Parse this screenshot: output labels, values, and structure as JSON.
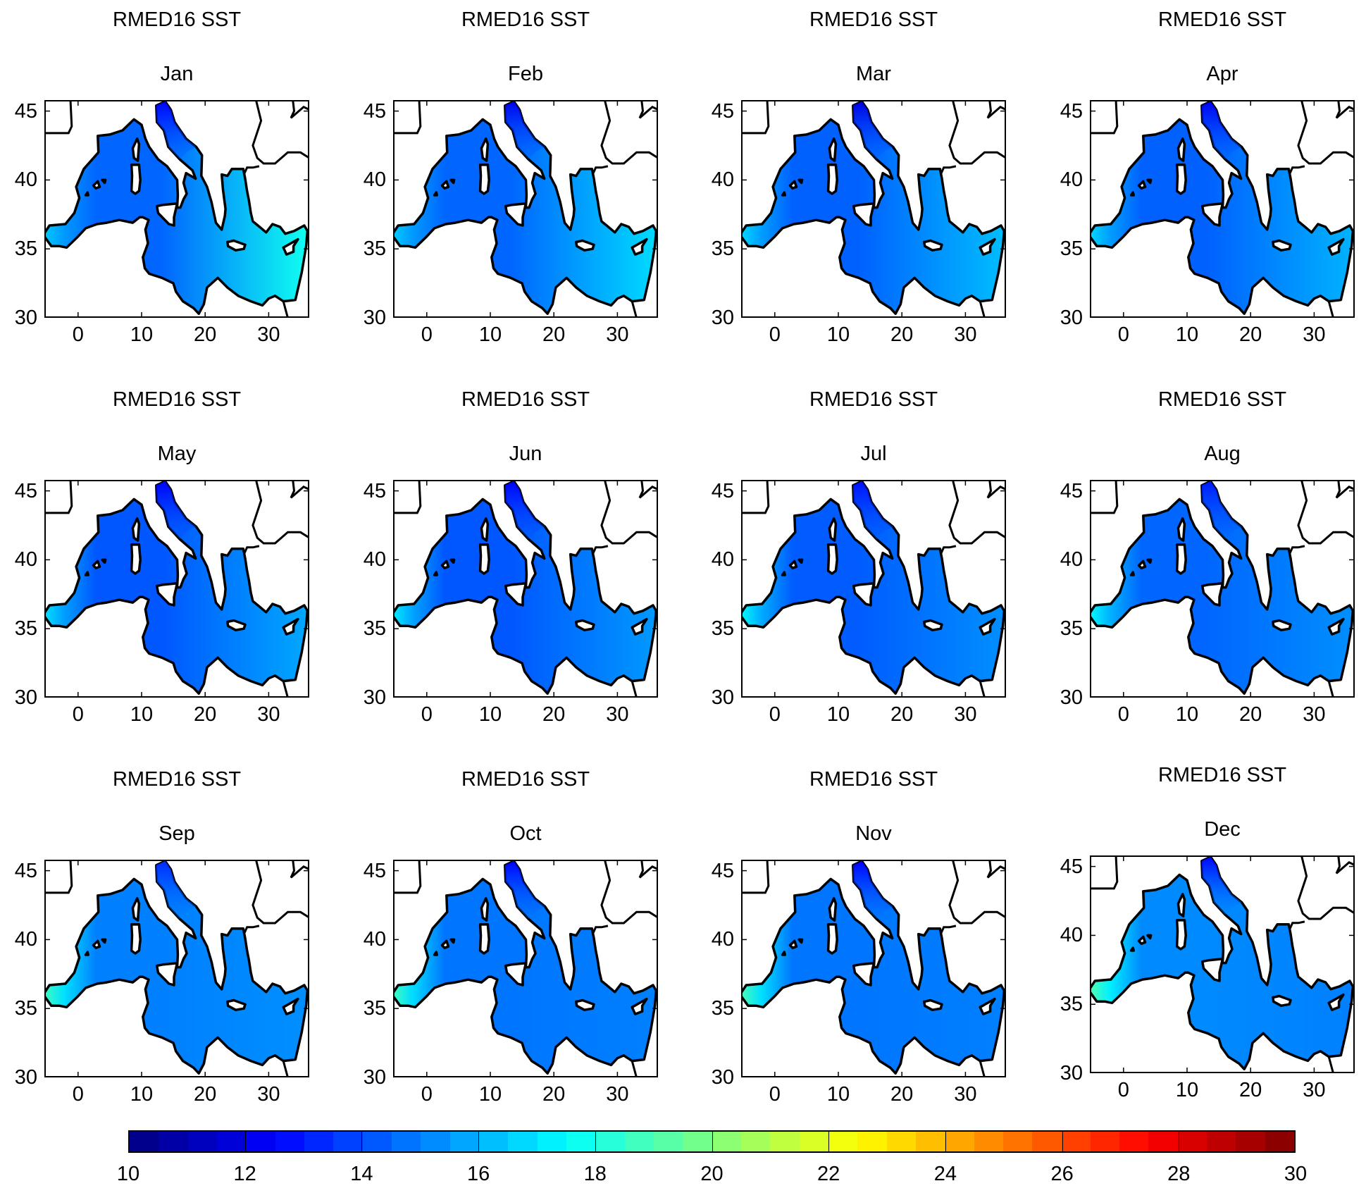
{
  "chart_data": {
    "type": "heatmap",
    "title": "RMED16 SST",
    "variable": "Sea surface temperature",
    "panels": [
      {
        "title": "RMED16 SST",
        "month": "Jan",
        "sst_adriatic": 12.5,
        "sst_alboran": 16.5,
        "sst_west": 14.5,
        "sst_east": 17.8
      },
      {
        "title": "RMED16 SST",
        "month": "Feb",
        "sst_adriatic": 12.2,
        "sst_alboran": 16.5,
        "sst_west": 14.5,
        "sst_east": 16.8
      },
      {
        "title": "RMED16 SST",
        "month": "Mar",
        "sst_adriatic": 12.0,
        "sst_alboran": 16.8,
        "sst_west": 14.4,
        "sst_east": 16.2
      },
      {
        "title": "RMED16 SST",
        "month": "Apr",
        "sst_adriatic": 12.3,
        "sst_alboran": 16.8,
        "sst_west": 14.4,
        "sst_east": 16.0
      },
      {
        "title": "RMED16 SST",
        "month": "May",
        "sst_adriatic": 12.4,
        "sst_alboran": 17.0,
        "sst_west": 14.2,
        "sst_east": 15.8
      },
      {
        "title": "RMED16 SST",
        "month": "Jun",
        "sst_adriatic": 12.5,
        "sst_alboran": 17.2,
        "sst_west": 14.2,
        "sst_east": 15.5
      },
      {
        "title": "RMED16 SST",
        "month": "Jul",
        "sst_adriatic": 12.8,
        "sst_alboran": 17.5,
        "sst_west": 14.3,
        "sst_east": 15.3
      },
      {
        "title": "RMED16 SST",
        "month": "Aug",
        "sst_adriatic": 13.0,
        "sst_alboran": 17.5,
        "sst_west": 14.5,
        "sst_east": 15.3
      },
      {
        "title": "RMED16 SST",
        "month": "Sep",
        "sst_adriatic": 13.3,
        "sst_alboran": 18.8,
        "sst_west": 15.0,
        "sst_east": 15.3
      },
      {
        "title": "RMED16 SST",
        "month": "Oct",
        "sst_adriatic": 12.5,
        "sst_alboran": 18.8,
        "sst_west": 14.8,
        "sst_east": 15.0
      },
      {
        "title": "RMED16 SST",
        "month": "Nov",
        "sst_adriatic": 12.5,
        "sst_alboran": 19.0,
        "sst_west": 14.8,
        "sst_east": 15.0
      },
      {
        "title": "RMED16 SST",
        "month": "Dec",
        "sst_adriatic": 12.6,
        "sst_alboran": 19.2,
        "sst_west": 15.2,
        "sst_east": 15.0
      }
    ],
    "xlabel": "",
    "ylabel": "",
    "xlim": [
      -5.3,
      36.4
    ],
    "ylim": [
      30,
      45.8
    ],
    "xticks": [
      "0",
      "10",
      "20",
      "30"
    ],
    "yticks": [
      "45",
      "40",
      "35",
      "30"
    ],
    "colorbar": {
      "colormap": "jet",
      "range": [
        10,
        30
      ],
      "ticks": [
        "10",
        "12",
        "14",
        "16",
        "18",
        "20",
        "22",
        "24",
        "26",
        "28",
        "30"
      ],
      "placement": "bottom"
    }
  }
}
